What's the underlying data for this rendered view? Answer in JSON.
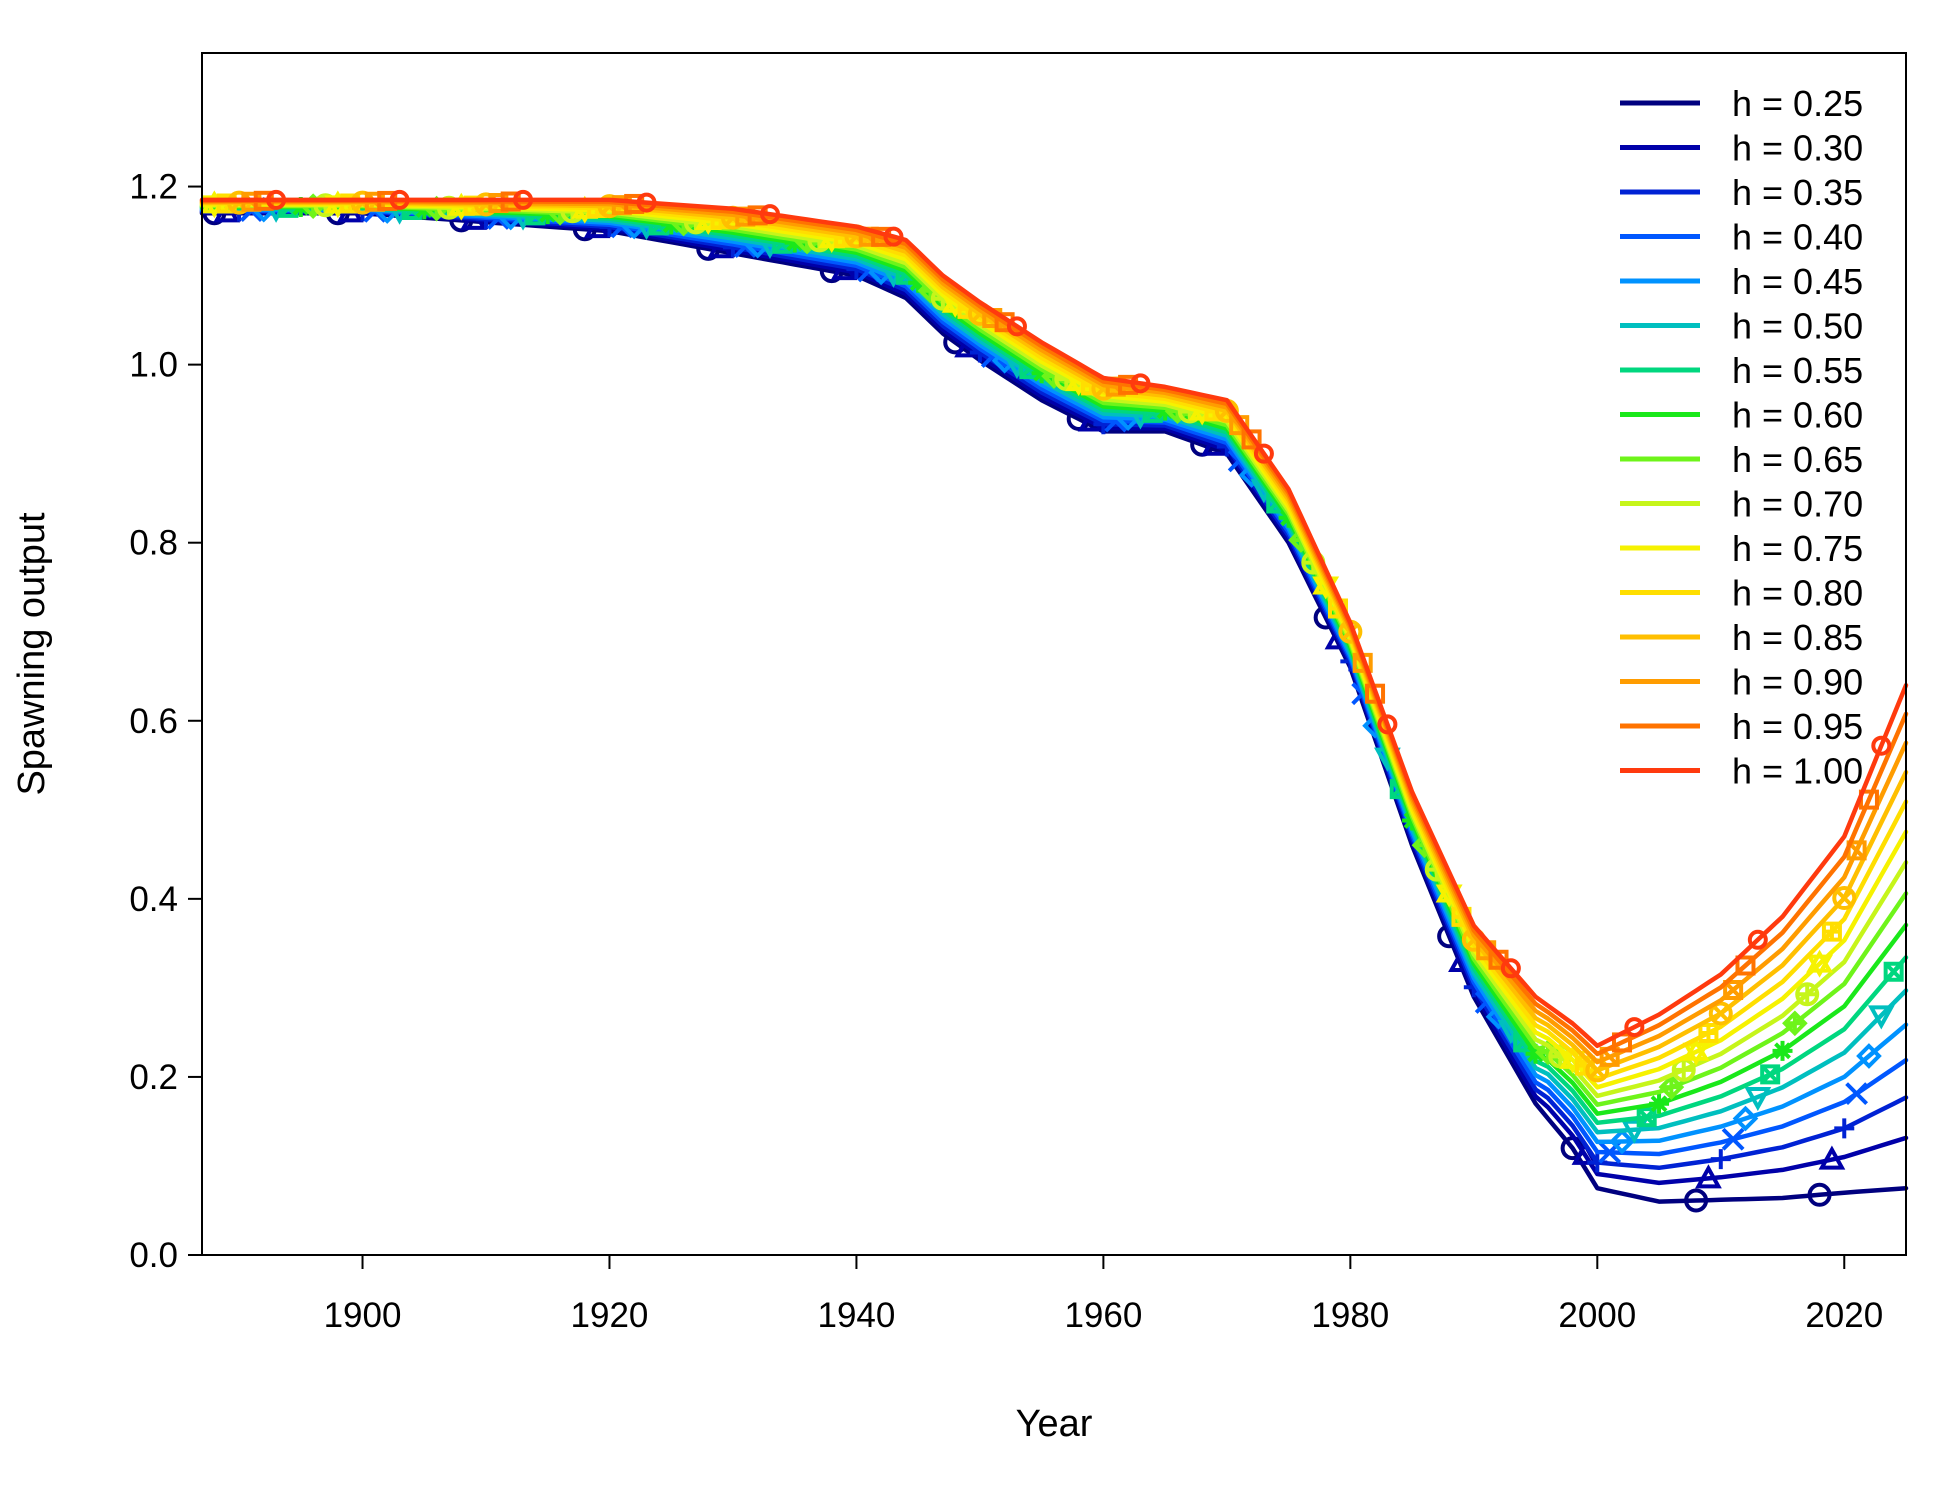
{
  "chart_data": {
    "type": "line",
    "xlabel": "Year",
    "ylabel": "Spawning output",
    "xlim": [
      1887,
      2025
    ],
    "ylim": [
      0,
      1.35
    ],
    "x_ticks": [
      1900,
      1920,
      1940,
      1960,
      1980,
      2000,
      2020
    ],
    "y_ticks": [
      0.0,
      0.2,
      0.4,
      0.6,
      0.8,
      1.0,
      1.2
    ],
    "x_tick_labels": [
      "1900",
      "1920",
      "1940",
      "1960",
      "1980",
      "2000",
      "2020"
    ],
    "y_tick_labels": [
      "0.0",
      "0.2",
      "0.4",
      "0.6",
      "0.8",
      "1.0",
      "1.2"
    ],
    "grid": false,
    "legend_position": "top-right",
    "anchor_years": [
      1887,
      1900,
      1920,
      1930,
      1940,
      1944,
      1947,
      1950,
      1955,
      1960,
      1965,
      1970,
      1975,
      1980,
      1985,
      1990,
      1995,
      1998,
      2000,
      2005,
      2010,
      2015,
      2020,
      2025
    ],
    "low_h_profile": [
      1.17,
      1.17,
      1.15,
      1.125,
      1.1,
      1.075,
      1.035,
      1.005,
      0.96,
      0.925,
      0.925,
      0.9,
      0.8,
      0.66,
      0.46,
      0.29,
      0.17,
      0.12,
      0.075,
      0.06,
      0.062,
      0.064,
      0.07,
      0.075
    ],
    "high_h_profile": [
      1.185,
      1.185,
      1.185,
      1.175,
      1.155,
      1.14,
      1.1,
      1.07,
      1.025,
      0.985,
      0.975,
      0.96,
      0.86,
      0.71,
      0.52,
      0.37,
      0.29,
      0.26,
      0.235,
      0.27,
      0.315,
      0.38,
      0.47,
      0.64
    ],
    "series": [
      {
        "name": "h = 0.25",
        "color": "#00007f",
        "marker": "circle"
      },
      {
        "name": "h = 0.30",
        "color": "#0000a9",
        "marker": "triangle"
      },
      {
        "name": "h = 0.35",
        "color": "#0022d4",
        "marker": "plus"
      },
      {
        "name": "h = 0.40",
        "color": "#0057ff",
        "marker": "cross"
      },
      {
        "name": "h = 0.45",
        "color": "#0092ff",
        "marker": "diamond"
      },
      {
        "name": "h = 0.50",
        "color": "#00bfbf",
        "marker": "triangle-down"
      },
      {
        "name": "h = 0.55",
        "color": "#00d77f",
        "marker": "square-cross"
      },
      {
        "name": "h = 0.60",
        "color": "#1ae81a",
        "marker": "star"
      },
      {
        "name": "h = 0.65",
        "color": "#6ef41a",
        "marker": "diamond-plus"
      },
      {
        "name": "h = 0.70",
        "color": "#c6f51a",
        "marker": "circle-plus"
      },
      {
        "name": "h = 0.75",
        "color": "#f6f200",
        "marker": "triangle-pair"
      },
      {
        "name": "h = 0.80",
        "color": "#ffde00",
        "marker": "square-plus"
      },
      {
        "name": "h = 0.85",
        "color": "#ffbf00",
        "marker": "circle-cross"
      },
      {
        "name": "h = 0.90",
        "color": "#ff9c00",
        "marker": "square-x"
      },
      {
        "name": "h = 0.95",
        "color": "#ff7300",
        "marker": "square"
      },
      {
        "name": "h = 1.00",
        "color": "#ff3a0e",
        "marker": "dot"
      }
    ]
  }
}
